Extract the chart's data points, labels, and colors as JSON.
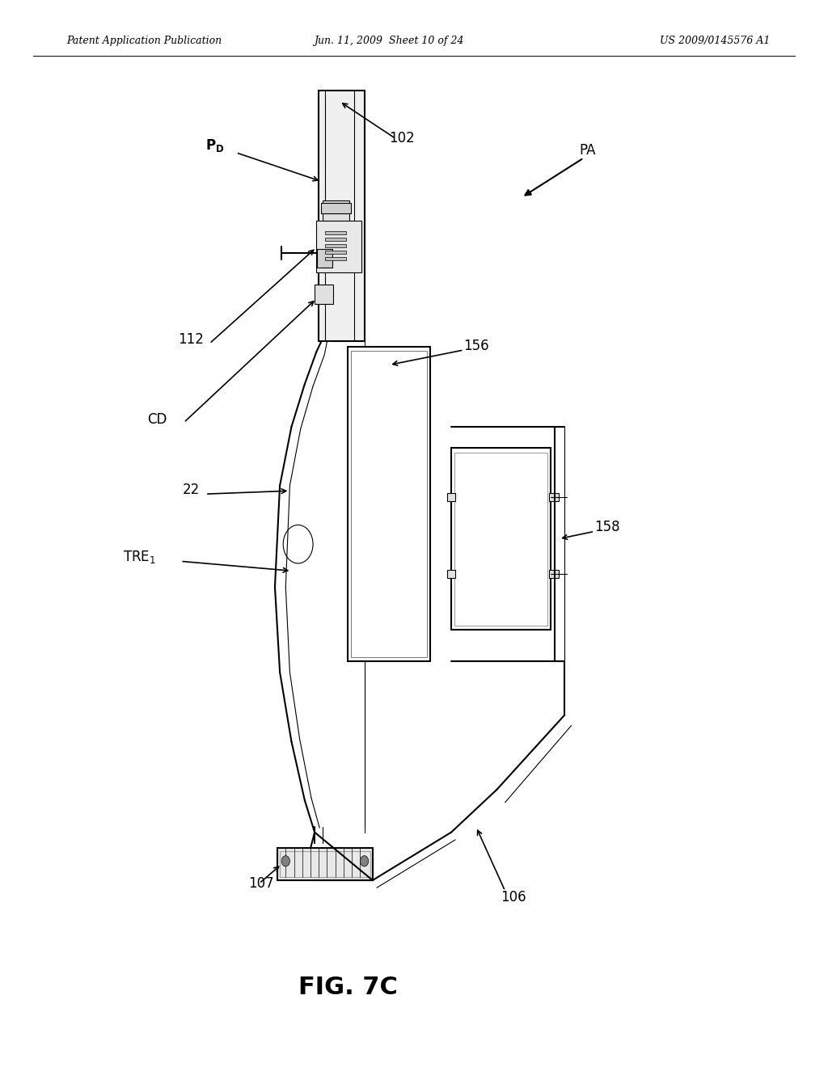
{
  "header_left": "Patent Application Publication",
  "header_center": "Jun. 11, 2009  Sheet 10 of 24",
  "header_right": "US 2009/0145576 A1",
  "figure_label": "FIG. 7C",
  "bg_color": "#ffffff",
  "line_color": "#000000"
}
